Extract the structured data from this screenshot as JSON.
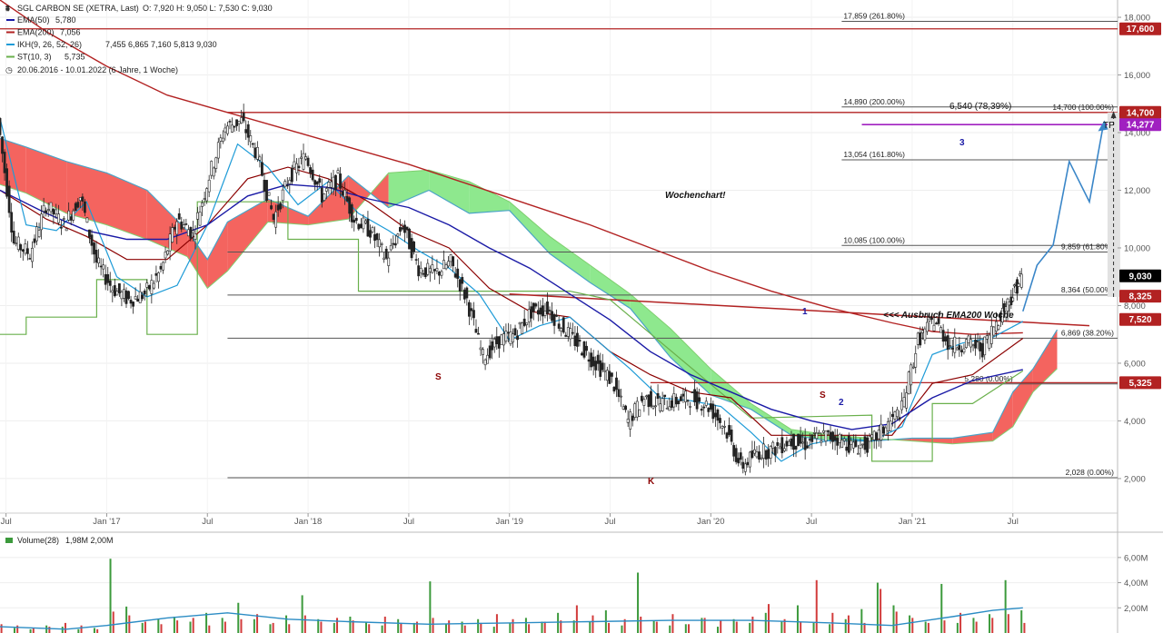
{
  "legend": {
    "title": "SGL CARBON SE (XETRA, Last)",
    "ohlc": "O: 7,920  H: 9,050  L: 7,530  C: 9,030",
    "items": [
      {
        "label": "EMA(50)",
        "value": "5,780",
        "color": "#1a1aa6"
      },
      {
        "label": "EMA(200)",
        "value": "7,056",
        "color": "#b22222"
      },
      {
        "label": "IKH(9, 26, 52, 26)",
        "value": "7,455  6,865  7,160  5,813  9,030",
        "color": "#1e9bd7"
      },
      {
        "label": "ST(10, 3)",
        "value": "5,735",
        "color": "#6ab04c"
      }
    ],
    "period": "20.06.2016 - 10.01.2022  (6 Jahre, 1 Woche)"
  },
  "annotations": {
    "chart_label": "Wochenchart!",
    "breakout": "<<< Ausbruch EMA200 Woche",
    "target_move": "6,540 (78,39%)",
    "tp": "TP",
    "wave1": "1",
    "wave2": "2",
    "wave3": "3",
    "s1": "S",
    "s2": "S",
    "k": "K"
  },
  "colors": {
    "candle_up": "#222222",
    "ema50": "#1a1aa6",
    "ema200": "#b22222",
    "kumo_red": "#f4645f",
    "kumo_green": "#8ee88e",
    "tenkan": "#1e9bd7",
    "kijun": "#8b0000",
    "supertrend": "#6ab04c",
    "projection": "#3a86c8",
    "resistance": "#b22222",
    "purple": "#a020c0",
    "vol_up": "#3c9a3c",
    "vol_down": "#d23c3c"
  },
  "chart_data": {
    "type": "line",
    "x_ticks": [
      "Jul",
      "Jan '17",
      "Jul",
      "Jan '18",
      "Jul",
      "Jan '19",
      "Jul",
      "Jan '20",
      "Jul",
      "Jan '21",
      "Jul"
    ],
    "x_tick_values": [
      2016.5,
      2017.0,
      2017.5,
      2018.0,
      2018.5,
      2019.0,
      2019.5,
      2020.0,
      2020.5,
      2021.0,
      2021.5
    ],
    "xlim": [
      2016.47,
      2022.02
    ],
    "ylim": [
      0.8,
      18.6
    ],
    "y_ticks": [
      "2,000",
      "4,000",
      "6,000",
      "8,000",
      "10,000",
      "12,000",
      "14,000",
      "16,000",
      "18,000"
    ],
    "y_tick_values": [
      2,
      4,
      6,
      8,
      10,
      12,
      14,
      16,
      18
    ],
    "price_labels": [
      {
        "label": "17,600",
        "value": 17.6,
        "color": "#b22222"
      },
      {
        "label": "14,700",
        "value": 14.7,
        "color": "#b22222"
      },
      {
        "label": "14,277",
        "value": 14.277,
        "color": "#a020c0"
      },
      {
        "label": "9,030",
        "value": 9.03,
        "color": "#000000"
      },
      {
        "label": "8,325",
        "value": 8.325,
        "color": "#b22222"
      },
      {
        "label": "7,520",
        "value": 7.52,
        "color": "#b22222"
      },
      {
        "label": "5,325",
        "value": 5.325,
        "color": "#b22222"
      }
    ],
    "fib_levels": [
      {
        "label": "17,859 (261.80%)",
        "value": 17.859,
        "xfrom": 2020.65
      },
      {
        "label": "14,890 (200.00%)",
        "value": 14.89,
        "xfrom": 2020.65
      },
      {
        "label": "13,054 (161.80%)",
        "value": 13.054,
        "xfrom": 2020.65
      },
      {
        "label": "10,085 (100.00%)",
        "value": 10.085,
        "xfrom": 2020.65
      },
      {
        "label": "9,859 (61.80%)",
        "value": 9.859,
        "xfrom": 2017.6
      },
      {
        "label": "8,364 (50.00%)",
        "value": 8.364,
        "xfrom": 2017.6
      },
      {
        "label": "6,869 (38.20%)",
        "value": 6.869,
        "xfrom": 2017.6
      },
      {
        "label": "5,280 (0.00%)",
        "value": 5.28,
        "xfrom": 2021.25
      },
      {
        "label": "2,028 (0.00%)",
        "value": 2.028,
        "xfrom": 2017.6
      },
      {
        "label": "14,700 (100.00%)",
        "value": 14.7,
        "xfrom": 2021.9
      }
    ],
    "price": {
      "name": "SGL CARBON SE",
      "x": [
        2016.47,
        2016.55,
        2016.63,
        2016.71,
        2016.8,
        2016.88,
        2016.96,
        2017.04,
        2017.12,
        2017.2,
        2017.28,
        2017.36,
        2017.44,
        2017.52,
        2017.6,
        2017.68,
        2017.76,
        2017.84,
        2017.92,
        2018.0,
        2018.08,
        2018.16,
        2018.24,
        2018.32,
        2018.4,
        2018.48,
        2018.56,
        2018.64,
        2018.72,
        2018.8,
        2018.88,
        2018.96,
        2019.04,
        2019.12,
        2019.2,
        2019.28,
        2019.36,
        2019.44,
        2019.52,
        2019.6,
        2019.68,
        2019.76,
        2019.84,
        2019.92,
        2020.0,
        2020.08,
        2020.16,
        2020.24,
        2020.32,
        2020.4,
        2020.48,
        2020.56,
        2020.64,
        2020.72,
        2020.8,
        2020.88,
        2020.96,
        2021.04,
        2021.12,
        2021.2,
        2021.28,
        2021.36,
        2021.44,
        2021.5,
        2021.55
      ],
      "y": [
        14.5,
        10.2,
        9.8,
        11.5,
        10.8,
        11.8,
        9.5,
        8.6,
        8.2,
        8.4,
        9.2,
        11.0,
        10.5,
        12.5,
        14.2,
        14.4,
        13.2,
        11.0,
        12.5,
        13.2,
        11.8,
        12.4,
        11.0,
        10.6,
        9.6,
        10.8,
        9.3,
        9.1,
        9.5,
        8.2,
        6.2,
        6.8,
        7.0,
        7.8,
        7.9,
        7.2,
        6.6,
        6.0,
        5.4,
        4.0,
        4.8,
        4.6,
        4.7,
        4.8,
        4.5,
        3.8,
        2.4,
        2.9,
        3.0,
        3.3,
        3.2,
        3.5,
        3.4,
        3.1,
        3.2,
        3.8,
        4.4,
        6.8,
        7.5,
        6.6,
        6.7,
        6.5,
        7.6,
        8.3,
        9.03
      ]
    },
    "ema200": {
      "name": "EMA(200)",
      "x": [
        2016.47,
        2016.7,
        2017.0,
        2017.3,
        2017.6,
        2017.9,
        2018.2,
        2018.5,
        2018.8,
        2019.1,
        2019.4,
        2019.7,
        2020.0,
        2020.3,
        2020.6,
        2020.9,
        2021.1,
        2021.3,
        2021.55
      ],
      "y": [
        18.6,
        17.5,
        16.3,
        15.3,
        14.7,
        14.1,
        13.5,
        12.9,
        12.2,
        11.5,
        10.8,
        10.0,
        9.2,
        8.5,
        7.9,
        7.4,
        7.1,
        7.0,
        7.056
      ]
    },
    "ema50": {
      "name": "EMA(50)",
      "x": [
        2016.47,
        2016.7,
        2016.9,
        2017.1,
        2017.3,
        2017.5,
        2017.7,
        2017.9,
        2018.1,
        2018.3,
        2018.5,
        2018.7,
        2018.9,
        2019.1,
        2019.3,
        2019.5,
        2019.7,
        2019.9,
        2020.1,
        2020.3,
        2020.5,
        2020.7,
        2020.9,
        2021.1,
        2021.3,
        2021.55
      ],
      "y": [
        12.0,
        11.2,
        10.6,
        10.3,
        10.3,
        10.8,
        11.8,
        12.2,
        12.1,
        11.7,
        11.4,
        10.8,
        10.0,
        9.3,
        8.4,
        7.5,
        6.4,
        5.6,
        5.0,
        4.4,
        4.0,
        3.7,
        3.9,
        4.8,
        5.4,
        5.78
      ]
    },
    "tenkan": {
      "name": "IKH Tenkan",
      "x": [
        2016.47,
        2016.6,
        2016.75,
        2016.9,
        2017.05,
        2017.2,
        2017.35,
        2017.5,
        2017.65,
        2017.8,
        2017.95,
        2018.1,
        2018.25,
        2018.4,
        2018.55,
        2018.7,
        2018.85,
        2019.0,
        2019.15,
        2019.3,
        2019.45,
        2019.6,
        2019.75,
        2019.9,
        2020.05,
        2020.2,
        2020.35,
        2020.5,
        2020.65,
        2020.8,
        2020.95,
        2021.1,
        2021.25,
        2021.4,
        2021.55
      ],
      "y": [
        14.5,
        10.8,
        10.6,
        11.6,
        9.0,
        8.3,
        8.7,
        10.8,
        13.6,
        12.8,
        11.5,
        12.3,
        11.2,
        10.6,
        9.9,
        9.3,
        8.4,
        6.8,
        7.3,
        7.6,
        6.7,
        5.8,
        4.8,
        4.7,
        4.5,
        3.6,
        2.6,
        3.2,
        3.4,
        3.3,
        3.8,
        6.3,
        6.7,
        6.9,
        7.455
      ]
    },
    "kijun": {
      "name": "IKH Kijun",
      "x": [
        2016.47,
        2016.7,
        2016.9,
        2017.1,
        2017.3,
        2017.5,
        2017.7,
        2017.9,
        2018.1,
        2018.3,
        2018.5,
        2018.7,
        2018.9,
        2019.1,
        2019.3,
        2019.5,
        2019.7,
        2019.9,
        2020.1,
        2020.3,
        2020.5,
        2020.7,
        2020.9,
        2021.1,
        2021.3,
        2021.55
      ],
      "y": [
        12.0,
        11.0,
        10.4,
        9.6,
        9.6,
        10.8,
        12.4,
        12.8,
        12.4,
        11.6,
        10.6,
        10.0,
        8.6,
        7.8,
        7.6,
        6.4,
        5.6,
        5.0,
        4.8,
        3.5,
        3.5,
        3.5,
        3.5,
        5.3,
        5.6,
        6.865
      ]
    },
    "kumo": {
      "name": "Ichimoku cloud",
      "x": [
        2016.47,
        2016.6,
        2016.8,
        2017.0,
        2017.2,
        2017.4,
        2017.5,
        2017.6,
        2017.8,
        2018.0,
        2018.2,
        2018.4,
        2018.6,
        2018.8,
        2019.0,
        2019.2,
        2019.4,
        2019.6,
        2019.8,
        2020.0,
        2020.2,
        2020.4,
        2020.6,
        2020.8,
        2021.0,
        2021.2,
        2021.4,
        2021.5,
        2021.6,
        2021.72
      ],
      "a": [
        13.8,
        13.5,
        13.0,
        12.6,
        12.0,
        10.6,
        9.6,
        10.9,
        11.7,
        11.1,
        12.5,
        11.4,
        12.0,
        11.2,
        11.3,
        9.8,
        8.8,
        7.9,
        6.2,
        4.9,
        4.4,
        3.5,
        3.3,
        3.3,
        3.4,
        3.4,
        3.6,
        5.0,
        5.8,
        7.16
      ],
      "b": [
        12.2,
        11.9,
        11.2,
        10.8,
        10.3,
        9.7,
        8.6,
        9.2,
        10.9,
        10.8,
        11.0,
        12.6,
        12.7,
        12.3,
        11.6,
        10.4,
        9.4,
        8.4,
        7.2,
        5.8,
        4.6,
        3.7,
        3.5,
        3.4,
        3.3,
        3.2,
        3.3,
        3.8,
        5.0,
        5.813
      ]
    },
    "supertrend": {
      "name": "ST(10, 3)",
      "x": [
        2016.47,
        2016.6,
        2016.6,
        2016.95,
        2016.95,
        2017.2,
        2017.2,
        2017.45,
        2017.45,
        2017.9,
        2017.9,
        2018.25,
        2018.25,
        2018.6,
        2019.3,
        2019.5,
        2020.2,
        2020.8,
        2020.8,
        2021.1,
        2021.1,
        2021.3,
        2021.55
      ],
      "y": [
        7.0,
        7.0,
        7.6,
        7.6,
        8.9,
        8.9,
        7.0,
        7.0,
        11.6,
        11.6,
        10.3,
        10.3,
        8.5,
        8.5,
        8.5,
        8.2,
        4.1,
        4.2,
        2.6,
        2.6,
        4.6,
        4.6,
        5.735
      ]
    },
    "projection": {
      "name": "Projection",
      "x": [
        2021.55,
        2021.62,
        2021.7,
        2021.78,
        2021.88,
        2021.95
      ],
      "y": [
        7.8,
        9.4,
        10.1,
        13.0,
        11.6,
        14.3
      ]
    },
    "volume": {
      "name": "Volume(28)",
      "ylim": [
        0,
        7.0
      ],
      "y_ticks": [
        "2,00M",
        "4,00M",
        "6,00M"
      ],
      "y_tick_values": [
        2,
        4,
        6
      ],
      "avg_x": [
        2016.47,
        2016.8,
        2017.0,
        2017.3,
        2017.6,
        2017.9,
        2018.2,
        2018.6,
        2019.0,
        2019.4,
        2019.8,
        2020.2,
        2020.6,
        2020.9,
        2021.2,
        2021.4,
        2021.55
      ],
      "avg_y": [
        0.5,
        0.3,
        0.6,
        1.2,
        1.6,
        1.1,
        0.9,
        0.7,
        0.8,
        0.9,
        1.0,
        1.0,
        0.8,
        0.6,
        1.3,
        1.8,
        2.0
      ],
      "up": [
        0.5,
        0.4,
        0.3,
        0.6,
        0.5,
        0.3,
        0.4,
        5.9,
        2.1,
        0.8,
        1.1,
        1.3,
        0.9,
        1.6,
        1.2,
        2.4,
        1.1,
        0.7,
        1.4,
        3.0,
        1.1,
        0.8,
        1.3,
        0.9,
        0.6,
        1.1,
        0.8,
        4.1,
        0.7,
        0.9,
        1.1,
        0.5,
        0.8,
        1.2,
        0.9,
        1.6,
        1.0,
        0.9,
        1.8,
        0.6,
        4.8,
        1.0,
        0.6,
        0.7,
        1.2,
        0.5,
        1.1,
        0.8,
        1.6,
        0.9,
        2.2,
        0.8,
        0.7,
        1.1,
        1.9,
        4.0,
        2.2,
        1.4,
        0.9,
        3.9,
        0.8,
        1.2,
        1.5,
        4.2,
        1.8
      ],
      "down": [
        0.7,
        0.6,
        0.4,
        0.5,
        0.8,
        0.6,
        0.3,
        1.7,
        1.4,
        0.9,
        0.7,
        1.0,
        1.2,
        0.6,
        0.9,
        1.1,
        1.5,
        0.8,
        0.7,
        1.4,
        0.9,
        1.2,
        1.0,
        0.7,
        1.3,
        0.8,
        0.9,
        1.2,
        1.0,
        0.6,
        0.8,
        1.5,
        1.1,
        0.7,
        0.9,
        1.0,
        2.2,
        1.4,
        0.8,
        1.1,
        1.3,
        0.9,
        1.5,
        0.7,
        1.2,
        1.0,
        0.9,
        1.3,
        2.3,
        1.1,
        0.9,
        4.2,
        1.6,
        1.4,
        0.8,
        3.5,
        1.7,
        1.2,
        0.8,
        1.0,
        1.6,
        0.9,
        1.2,
        1.5,
        0.8
      ]
    }
  },
  "volume_legend": {
    "label": "Volume(28)",
    "values": "1,98M  2,00M"
  }
}
